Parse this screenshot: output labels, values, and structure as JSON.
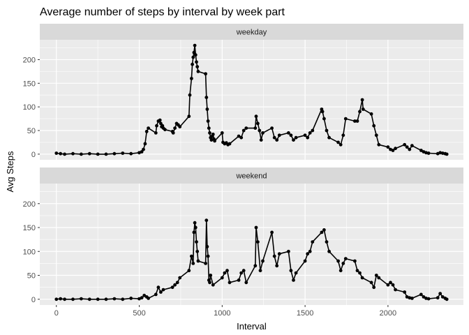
{
  "chart_data": {
    "type": "line",
    "title": "Average number of steps by interval by week part",
    "xlabel": "Interval",
    "ylabel": "Avg Steps",
    "xlim": [
      -100,
      2455
    ],
    "ylim": [
      -12,
      242
    ],
    "xticks": [
      0,
      500,
      1000,
      1500,
      2000
    ],
    "yticks": [
      0,
      50,
      100,
      150,
      200
    ],
    "grid": true,
    "markers": true,
    "line_color": "#000000",
    "panel_background": "#ebebeb",
    "strip_background": "#d9d9d9",
    "grid_color": "#ffffff",
    "panels": [
      {
        "label": "weekday",
        "x": [
          0,
          25,
          50,
          100,
          150,
          200,
          250,
          300,
          350,
          400,
          450,
          500,
          515,
          525,
          535,
          545,
          555,
          600,
          605,
          615,
          625,
          630,
          635,
          640,
          645,
          655,
          700,
          705,
          715,
          725,
          735,
          745,
          800,
          805,
          815,
          820,
          825,
          830,
          835,
          840,
          845,
          850,
          855,
          900,
          905,
          910,
          915,
          920,
          925,
          930,
          935,
          940,
          945,
          950,
          955,
          1000,
          1005,
          1015,
          1025,
          1035,
          1045,
          1100,
          1115,
          1130,
          1145,
          1200,
          1205,
          1215,
          1225,
          1235,
          1245,
          1300,
          1315,
          1330,
          1345,
          1400,
          1415,
          1430,
          1445,
          1500,
          1515,
          1530,
          1545,
          1600,
          1605,
          1615,
          1630,
          1645,
          1700,
          1715,
          1730,
          1745,
          1800,
          1815,
          1830,
          1845,
          1850,
          1900,
          1915,
          1930,
          1945,
          2000,
          2015,
          2030,
          2045,
          2100,
          2115,
          2130,
          2145,
          2200,
          2215,
          2230,
          2245,
          2300,
          2315,
          2330,
          2345,
          2355
        ],
        "y": [
          2,
          1,
          0,
          1,
          0,
          1,
          0,
          0,
          1,
          2,
          1,
          3,
          5,
          10,
          22,
          48,
          55,
          45,
          60,
          70,
          72,
          65,
          58,
          60,
          55,
          52,
          48,
          45,
          55,
          65,
          62,
          58,
          80,
          125,
          160,
          190,
          205,
          215,
          230,
          210,
          195,
          185,
          175,
          170,
          120,
          95,
          70,
          55,
          45,
          35,
          30,
          38,
          42,
          32,
          28,
          45,
          25,
          22,
          24,
          20,
          22,
          38,
          35,
          50,
          55,
          55,
          80,
          65,
          50,
          30,
          45,
          55,
          35,
          30,
          40,
          45,
          40,
          30,
          35,
          40,
          35,
          45,
          50,
          95,
          90,
          75,
          50,
          35,
          25,
          20,
          40,
          75,
          70,
          70,
          90,
          115,
          95,
          85,
          60,
          40,
          20,
          15,
          10,
          8,
          12,
          20,
          15,
          10,
          18,
          8,
          5,
          3,
          2,
          1,
          3,
          2,
          1,
          0
        ]
      },
      {
        "label": "weekend",
        "x": [
          0,
          25,
          50,
          100,
          150,
          200,
          250,
          300,
          350,
          400,
          450,
          500,
          515,
          530,
          545,
          555,
          600,
          615,
          630,
          645,
          700,
          715,
          730,
          745,
          800,
          815,
          825,
          830,
          835,
          840,
          845,
          850,
          855,
          900,
          905,
          910,
          915,
          920,
          925,
          930,
          945,
          1000,
          1015,
          1030,
          1045,
          1100,
          1115,
          1130,
          1145,
          1200,
          1205,
          1215,
          1230,
          1245,
          1300,
          1315,
          1330,
          1345,
          1400,
          1415,
          1430,
          1445,
          1500,
          1515,
          1530,
          1545,
          1600,
          1615,
          1630,
          1645,
          1700,
          1715,
          1730,
          1745,
          1800,
          1815,
          1830,
          1845,
          1900,
          1915,
          1930,
          1945,
          2000,
          2015,
          2030,
          2045,
          2100,
          2115,
          2130,
          2145,
          2200,
          2215,
          2230,
          2245,
          2300,
          2315,
          2330,
          2345,
          2355
        ],
        "y": [
          0,
          1,
          0,
          0,
          1,
          0,
          0,
          0,
          1,
          0,
          2,
          1,
          3,
          8,
          5,
          2,
          10,
          25,
          15,
          20,
          25,
          30,
          35,
          45,
          60,
          90,
          75,
          140,
          160,
          150,
          120,
          100,
          80,
          75,
          165,
          110,
          90,
          40,
          35,
          50,
          30,
          45,
          55,
          60,
          35,
          40,
          55,
          60,
          35,
          70,
          150,
          120,
          60,
          80,
          140,
          90,
          70,
          95,
          100,
          60,
          40,
          55,
          80,
          95,
          100,
          120,
          140,
          145,
          120,
          100,
          80,
          60,
          75,
          85,
          80,
          60,
          55,
          45,
          35,
          25,
          50,
          45,
          30,
          35,
          30,
          20,
          15,
          5,
          3,
          2,
          10,
          5,
          2,
          1,
          3,
          12,
          5,
          2,
          0
        ]
      }
    ]
  }
}
